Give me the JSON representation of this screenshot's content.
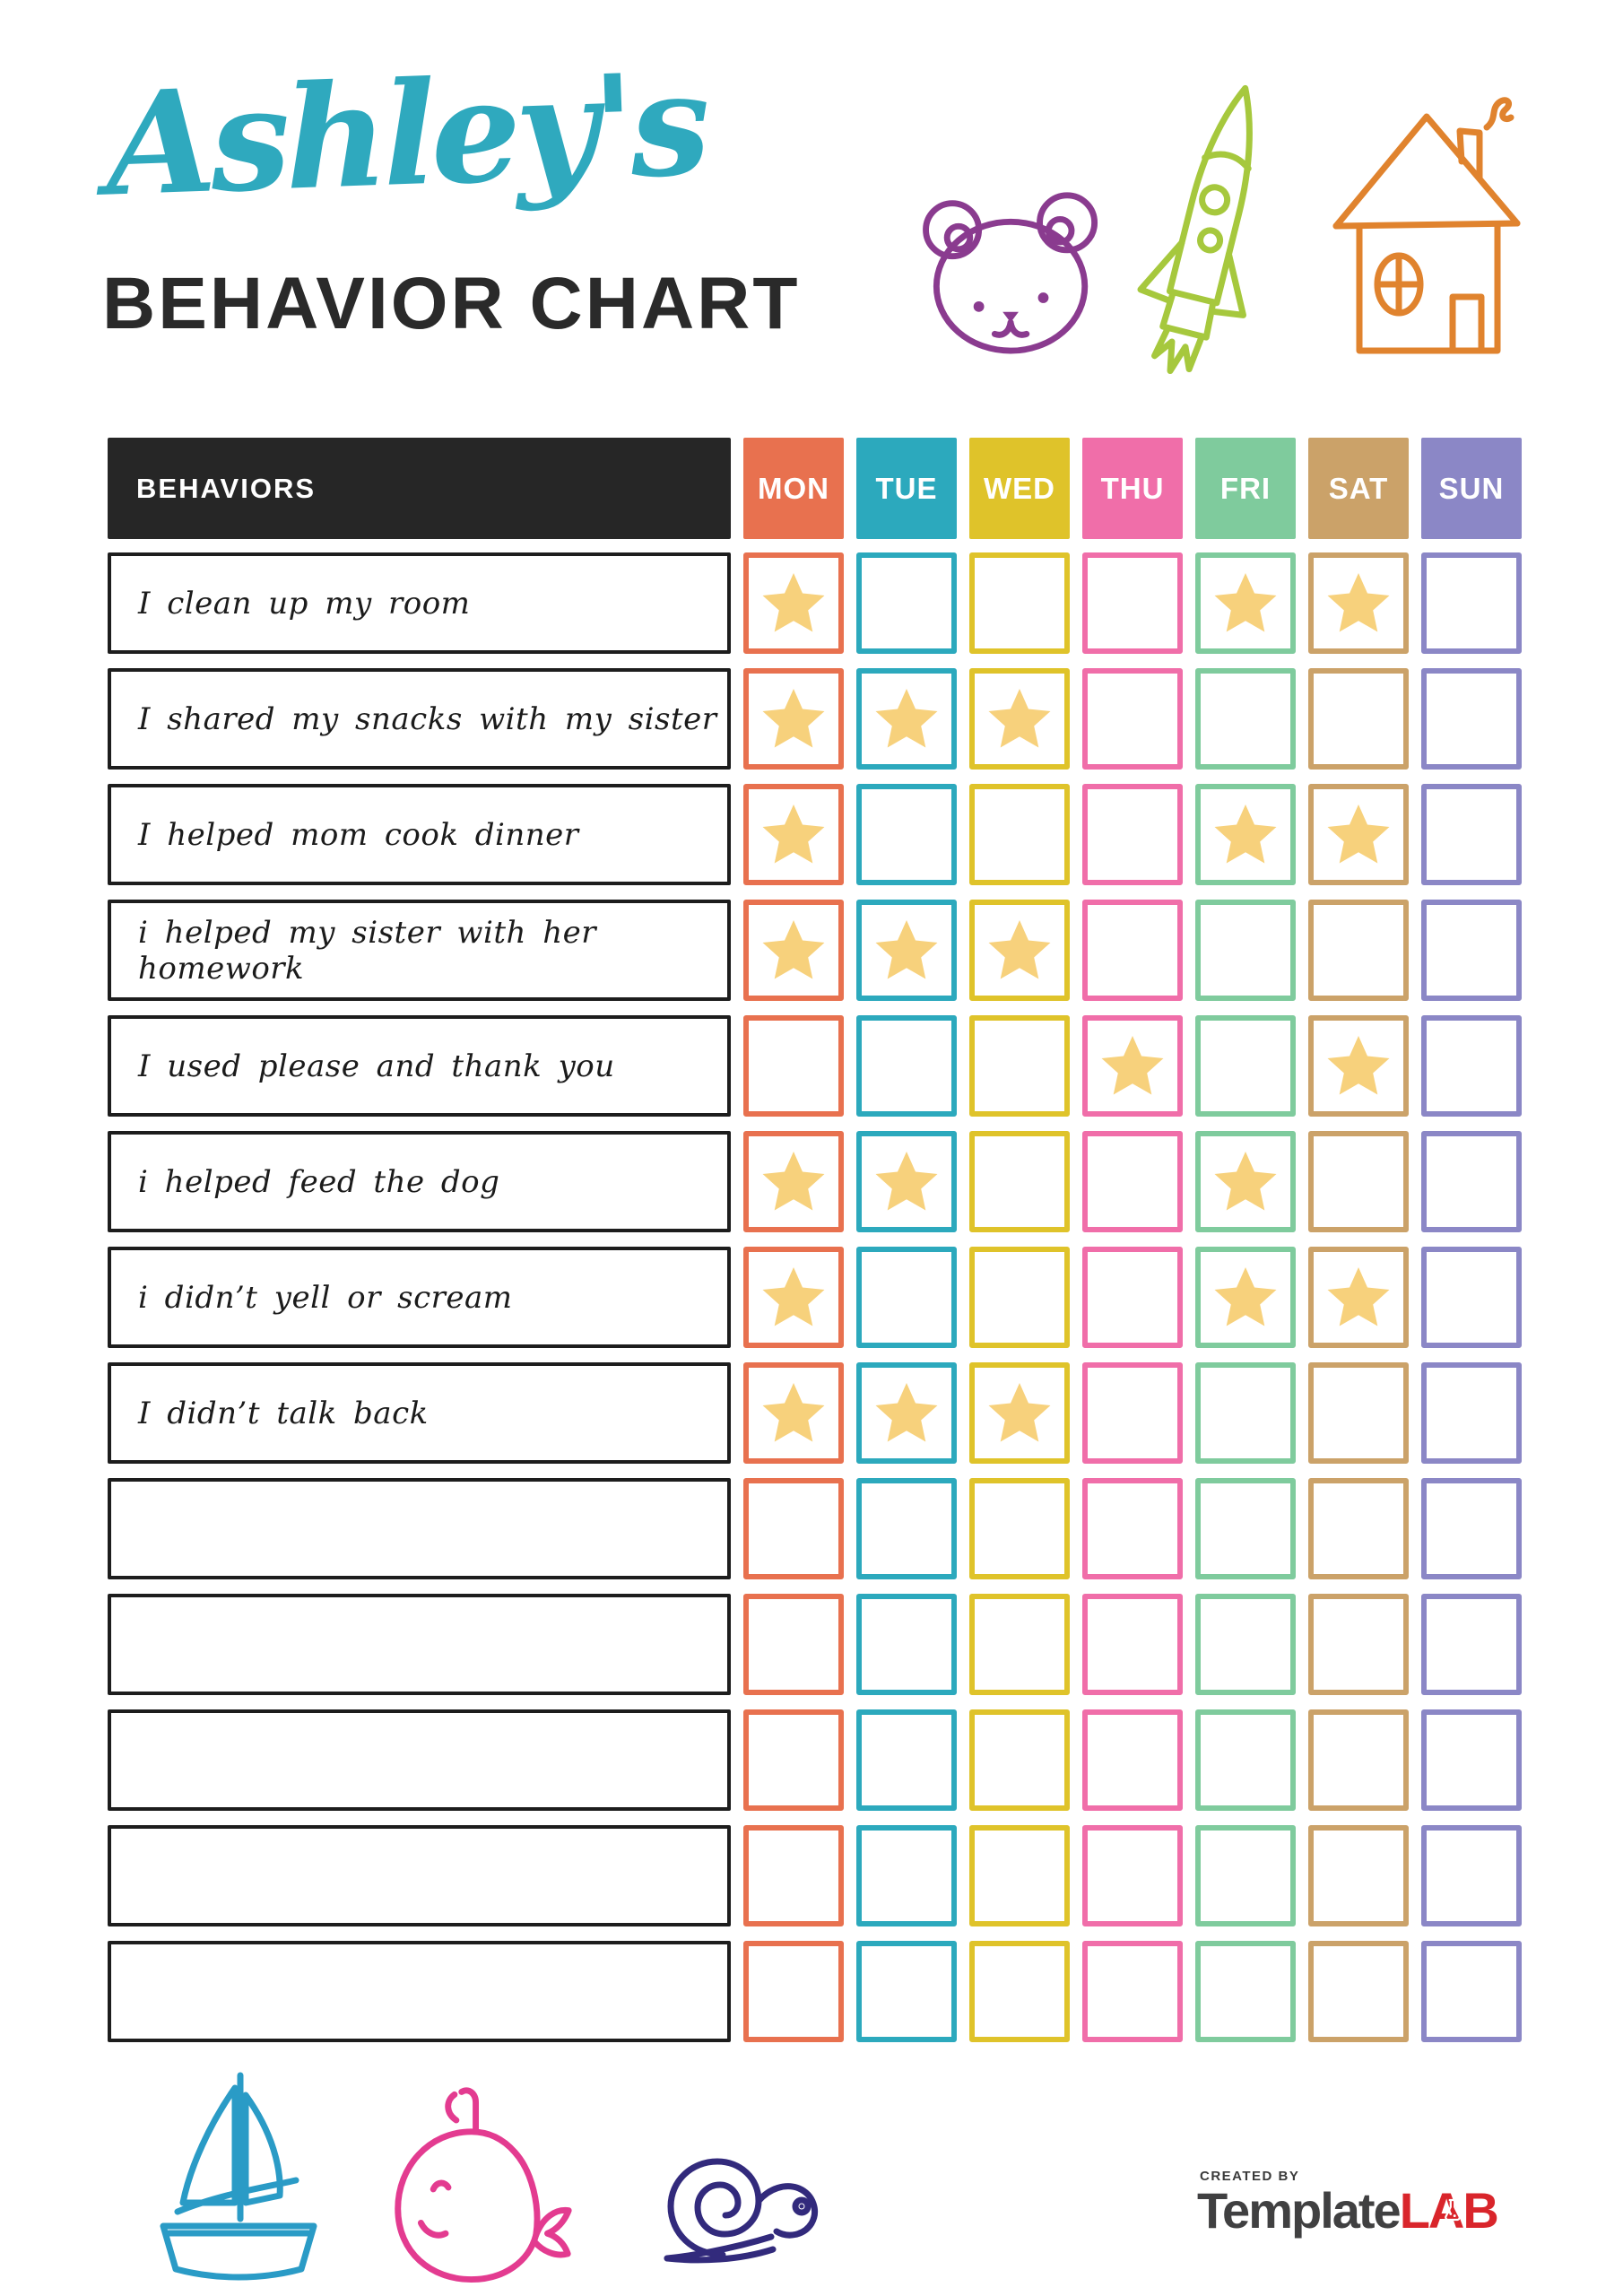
{
  "header": {
    "name_script": "Ashley's",
    "title": "BEHAVIOR CHART",
    "script_color": "#2FA9BE",
    "title_color": "#2A2A2A"
  },
  "table": {
    "behaviors_header": "BEHAVIORS",
    "header_bg": "#262626",
    "star_color": "#F7D17C",
    "days": [
      {
        "label": "MON",
        "color": "#E8714F"
      },
      {
        "label": "TUE",
        "color": "#2CA9BD"
      },
      {
        "label": "WED",
        "color": "#DFC32A"
      },
      {
        "label": "THU",
        "color": "#F06EA9"
      },
      {
        "label": "FRI",
        "color": "#7FCB9D"
      },
      {
        "label": "SAT",
        "color": "#CBA269"
      },
      {
        "label": "SUN",
        "color": "#8B87C6"
      }
    ],
    "rows": [
      {
        "behavior": "I clean up my room",
        "stars": [
          "MON",
          "FRI",
          "SAT"
        ]
      },
      {
        "behavior": "I shared my snacks with my sister",
        "stars": [
          "MON",
          "TUE",
          "WED"
        ]
      },
      {
        "behavior": "I helped mom cook dinner",
        "stars": [
          "MON",
          "FRI",
          "SAT"
        ]
      },
      {
        "behavior": "i helped my sister with her homework",
        "stars": [
          "MON",
          "TUE",
          "WED"
        ]
      },
      {
        "behavior": "I used please and thank you",
        "stars": [
          "THU",
          "SAT"
        ]
      },
      {
        "behavior": "i helped feed the dog",
        "stars": [
          "MON",
          "TUE",
          "FRI"
        ]
      },
      {
        "behavior": "i didn’t yell or scream",
        "stars": [
          "MON",
          "FRI",
          "SAT"
        ]
      },
      {
        "behavior": "I didn’t talk back",
        "stars": [
          "MON",
          "TUE",
          "WED"
        ]
      },
      {
        "behavior": "",
        "stars": []
      },
      {
        "behavior": "",
        "stars": []
      },
      {
        "behavior": "",
        "stars": []
      },
      {
        "behavior": "",
        "stars": []
      },
      {
        "behavior": "",
        "stars": []
      }
    ]
  },
  "doodle_colors": {
    "bear": "#8A3B8F",
    "rocket": "#A6C83D",
    "house": "#E0832E",
    "sailboat": "#2A9BC6",
    "whale": "#E33B90",
    "snail": "#322A7C"
  },
  "footer": {
    "created_by": "CREATED BY",
    "brand_template": "Template",
    "brand_lab": "LAB",
    "brand_gray": "#404041",
    "brand_red": "#D9252B"
  }
}
